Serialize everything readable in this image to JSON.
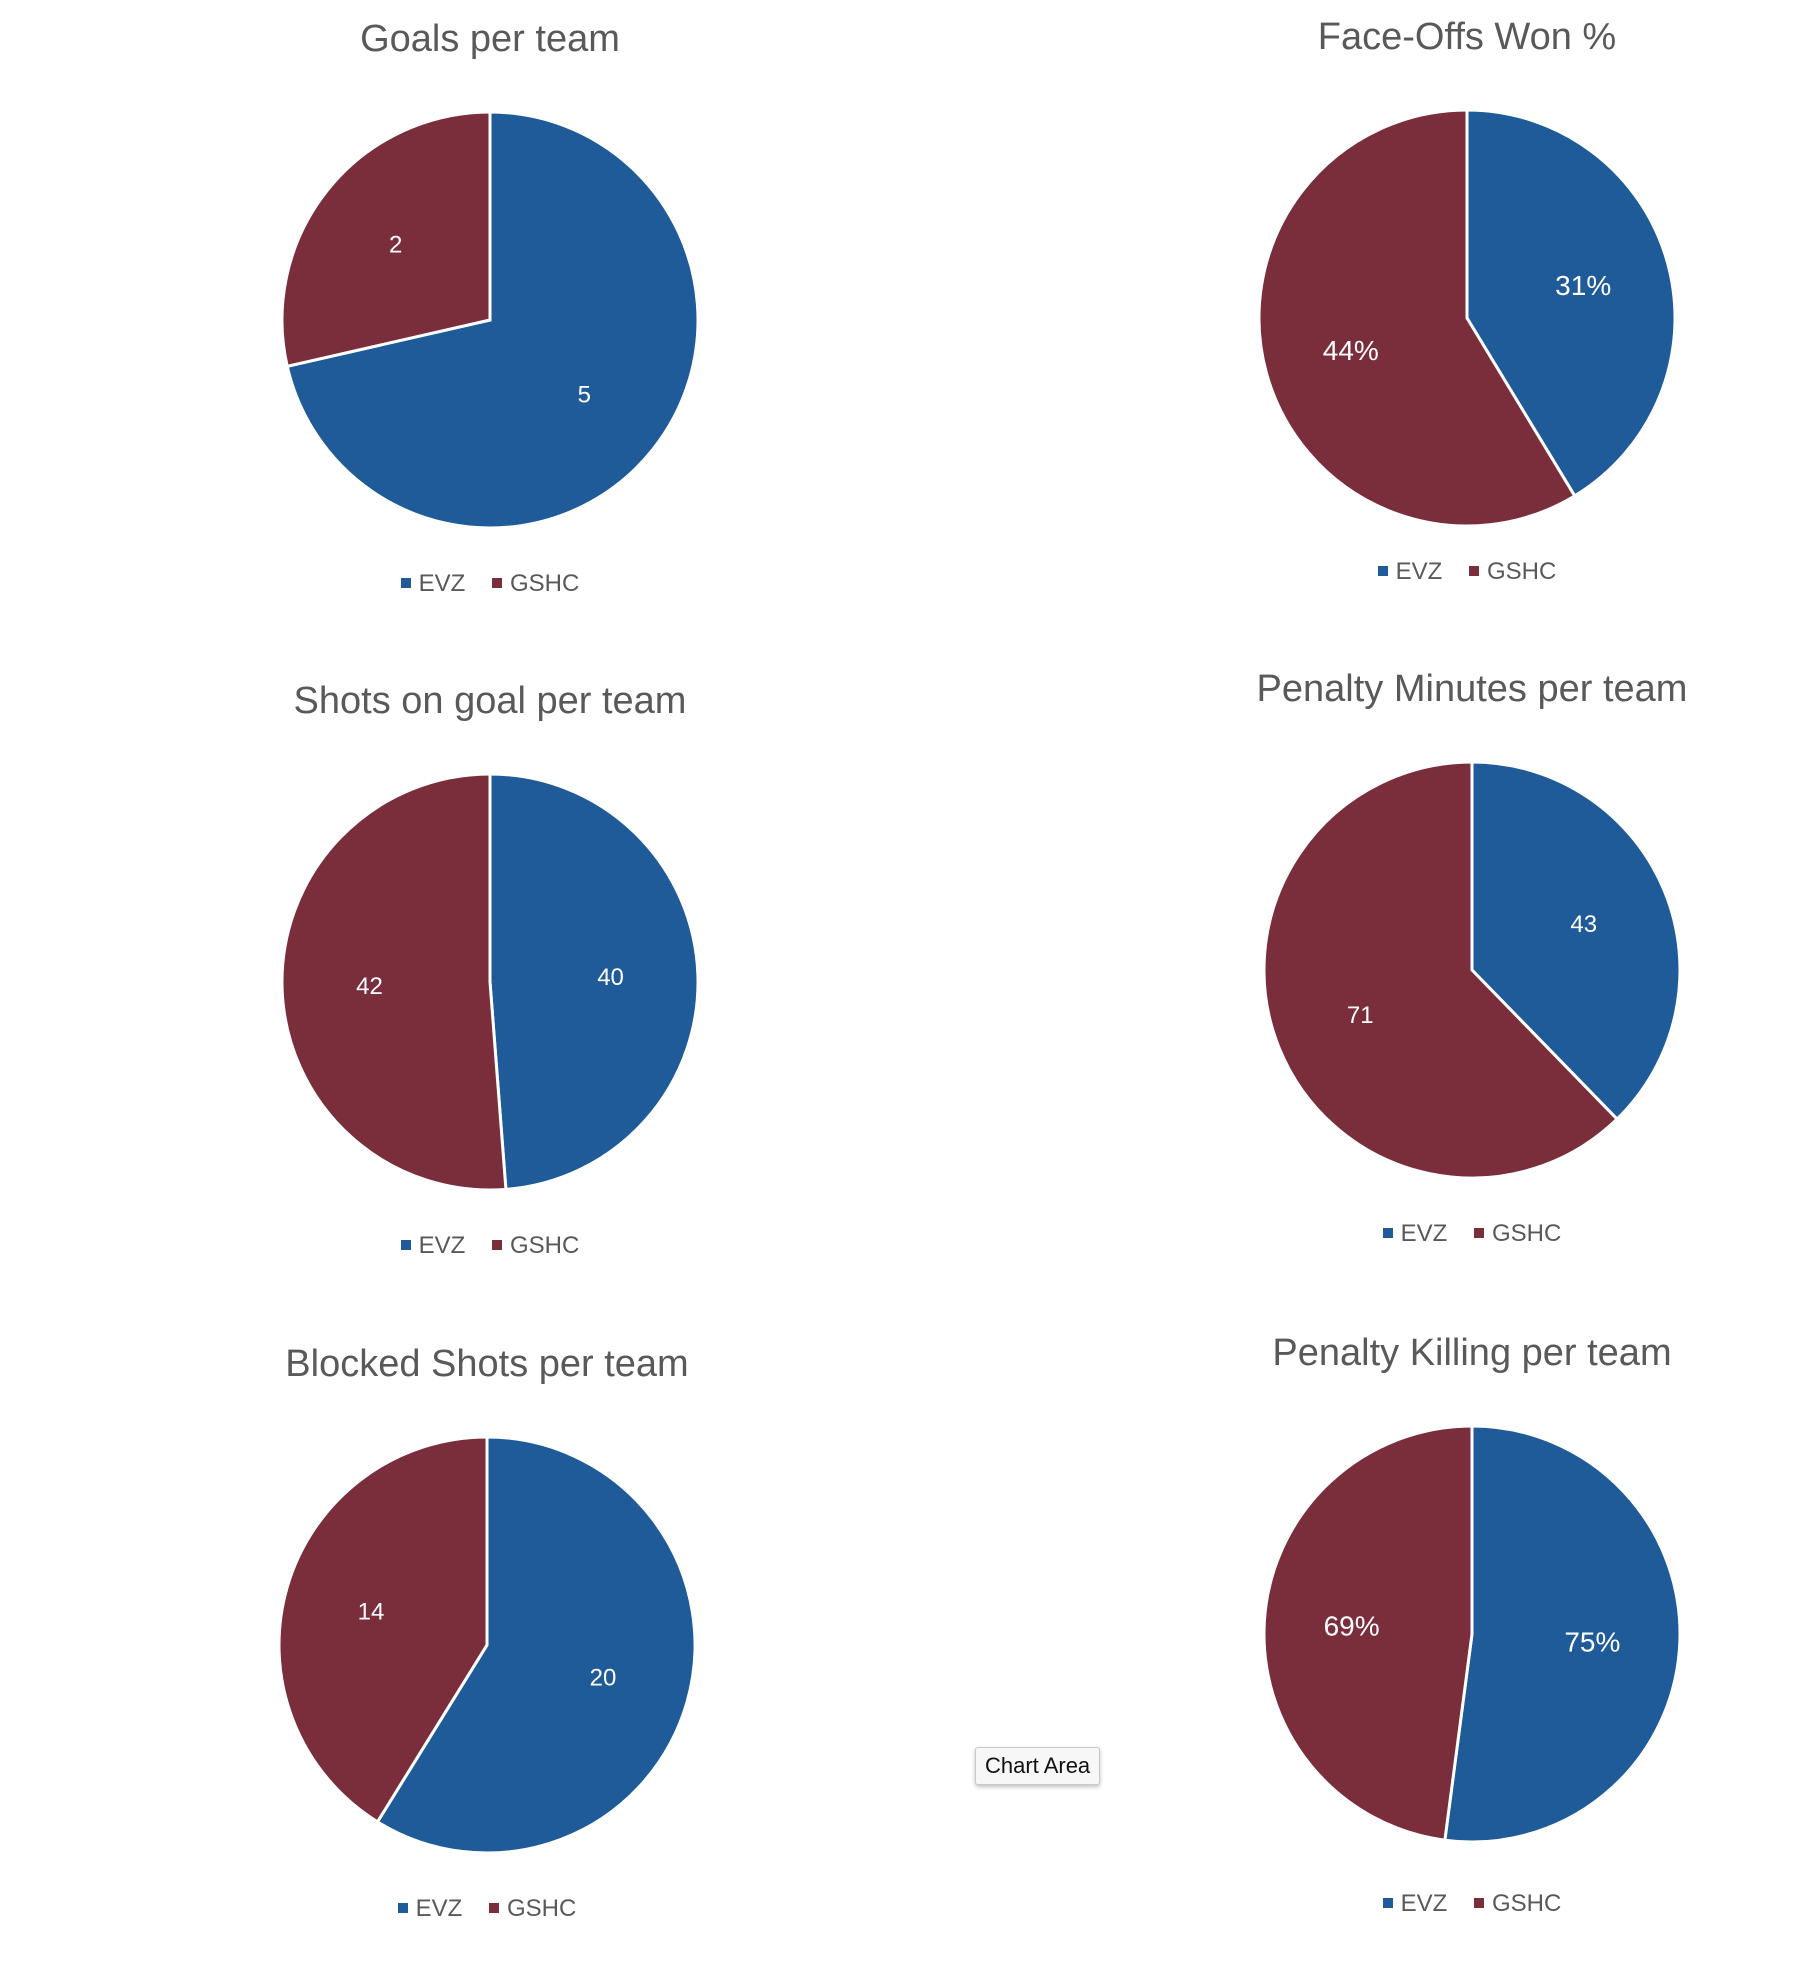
{
  "colors": {
    "evz": "#1f5b98",
    "gshc": "#7a2e3b"
  },
  "legend": {
    "items": [
      {
        "label": "EVZ",
        "color": "#1f5b98"
      },
      {
        "label": "GSHC",
        "color": "#7a2e3b"
      }
    ]
  },
  "tooltip": {
    "text": "Chart Area"
  },
  "chart_data": [
    {
      "type": "pie",
      "title": "Goals per team",
      "categories": [
        "EVZ",
        "GSHC"
      ],
      "values": [
        5,
        2
      ],
      "data_labels": [
        "5",
        "2"
      ],
      "legend_position": "bottom"
    },
    {
      "type": "pie",
      "title": "Face-Offs Won %",
      "categories": [
        "EVZ",
        "GSHC"
      ],
      "values": [
        31,
        44
      ],
      "data_labels": [
        "31%",
        "44%"
      ],
      "legend_position": "bottom"
    },
    {
      "type": "pie",
      "title": "Shots on goal per team",
      "categories": [
        "EVZ",
        "GSHC"
      ],
      "values": [
        40,
        42
      ],
      "data_labels": [
        "40",
        "42"
      ],
      "legend_position": "bottom"
    },
    {
      "type": "pie",
      "title": "Penalty Minutes per team",
      "categories": [
        "EVZ",
        "GSHC"
      ],
      "values": [
        43,
        71
      ],
      "data_labels": [
        "43",
        "71"
      ],
      "legend_position": "bottom"
    },
    {
      "type": "pie",
      "title": "Blocked Shots per team",
      "categories": [
        "EVZ",
        "GSHC"
      ],
      "values": [
        20,
        14
      ],
      "data_labels": [
        "20",
        "14"
      ],
      "legend_position": "bottom"
    },
    {
      "type": "pie",
      "title": "Penalty Killing per team",
      "categories": [
        "EVZ",
        "GSHC"
      ],
      "values": [
        75,
        69
      ],
      "data_labels": [
        "75%",
        "69%"
      ],
      "legend_position": "bottom"
    }
  ]
}
